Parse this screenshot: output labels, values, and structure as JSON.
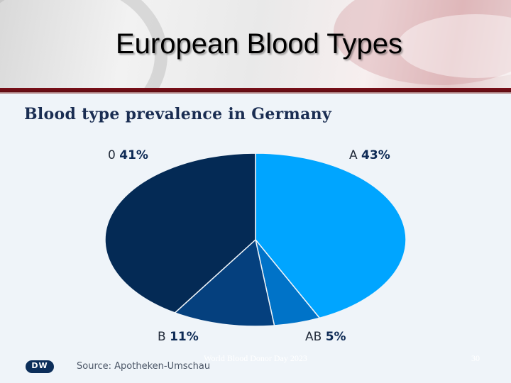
{
  "slide": {
    "title": "European Blood Types",
    "footer_text": "World Blood Donor Day 2023",
    "slide_number": "30"
  },
  "chart_data": {
    "type": "pie",
    "title": "Blood type prevalence in Germany",
    "source": "Source: Apotheken-Umschau",
    "logo_text": "DW",
    "slices": [
      {
        "label": "A",
        "value": 43,
        "value_label": "43%",
        "color": "#00a5ff"
      },
      {
        "label": "AB",
        "value": 5,
        "value_label": "5%",
        "color": "#0073c8"
      },
      {
        "label": "B",
        "value": 11,
        "value_label": "11%",
        "color": "#05407e"
      },
      {
        "label": "0",
        "value": 41,
        "value_label": "41%",
        "color": "#042a55"
      }
    ],
    "start": "top",
    "direction": "clockwise"
  }
}
